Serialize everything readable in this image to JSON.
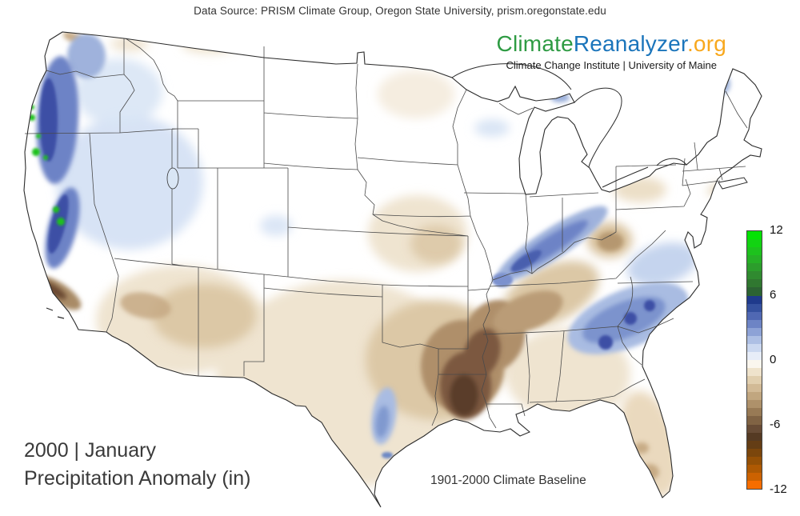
{
  "header": {
    "data_source": "Data Source: PRISM Climate Group, Oregon State University, prism.oregonstate.edu"
  },
  "logo": {
    "part_climate": "Climate",
    "part_reanalyzer": "Reanalyzer",
    "part_org": ".org",
    "subtitle": "Climate Change Institute | University of Maine",
    "colors": {
      "climate": "#2E9B43",
      "reanalyzer": "#1B75BB",
      "org": "#F8A81D"
    }
  },
  "title": {
    "line1": "2000 | January",
    "line2": "Precipitation Anomaly (in)"
  },
  "baseline_label": "1901-2000 Climate Baseline",
  "colorbar": {
    "units": "in",
    "max": 12,
    "min": -12,
    "ticks": [
      12,
      6,
      0,
      -6,
      -12
    ],
    "segments": [
      "#04E204",
      "#12D312",
      "#1DC21D",
      "#26B026",
      "#2C9D2C",
      "#308A30",
      "#307730",
      "#2C6333",
      "#1F3A8C",
      "#35519F",
      "#5068B3",
      "#6D84C5",
      "#8DA2D6",
      "#ADBFE4",
      "#CBD8F0",
      "#E7EDF8",
      "#FAF6EE",
      "#EFE3CC",
      "#E1CFAF",
      "#D2BA96",
      "#C1A67F",
      "#AE916A",
      "#987A55",
      "#806344",
      "#684C36",
      "#553A23",
      "#643D15",
      "#7B460C",
      "#945006",
      "#AE5903",
      "#CC6201",
      "#F66D00"
    ]
  },
  "map": {
    "land_color": "#FFFFFF",
    "border_color": "#2B2B2B",
    "state_line_color": "#4A4A4A",
    "regions": [
      {
        "area": "Pacific Northwest coast and Cascades (WA/OR)",
        "anomaly": "strong positive",
        "color": "#3D52AC"
      },
      {
        "area": "Sierra Nevada and N. California coast",
        "anomaly": "strong positive with extreme (>12 in) spots",
        "color": "#1FC11F"
      },
      {
        "area": "Great Basin (NV/UT/ID)",
        "anomaly": "weak positive",
        "color": "#D5E2F4"
      },
      {
        "area": "Southern California coast ranges",
        "anomaly": "moderate-strong negative",
        "color": "#7C5940"
      },
      {
        "area": "Arizona / New Mexico",
        "anomaly": "weak negative",
        "color": "#DCC8A6"
      },
      {
        "area": "Texas / Oklahoma plains",
        "anomaly": "weak negative",
        "color": "#EFE4D0"
      },
      {
        "area": "Central Texas band",
        "anomaly": "weak-moderate positive",
        "color": "#A9BCE2"
      },
      {
        "area": "Lower Mississippi Valley (LA/AR/MS)",
        "anomaly": "strong negative",
        "color": "#5A3D2C"
      },
      {
        "area": "Tennessee / Kentucky / Ohio Valley",
        "anomaly": "moderate negative",
        "color": "#AF8F6B"
      },
      {
        "area": "Illinois-Indiana-Ohio diagonal band",
        "anomaly": "moderate positive",
        "color": "#6D83C6"
      },
      {
        "area": "Carolinas into Virginia",
        "anomaly": "moderate-strong positive",
        "color": "#3D4FA5"
      },
      {
        "area": "Gulf Coast, Alabama, Georgia, Florida",
        "anomaly": "weak negative",
        "color": "#DCC8A6"
      },
      {
        "area": "Northeast (eastern NY, VT, ME)",
        "anomaly": "weak positive",
        "color": "#B9CBE9"
      },
      {
        "area": "Northern Plains and upper Midwest",
        "anomaly": "near zero",
        "color": "#FFFFFF"
      }
    ]
  }
}
